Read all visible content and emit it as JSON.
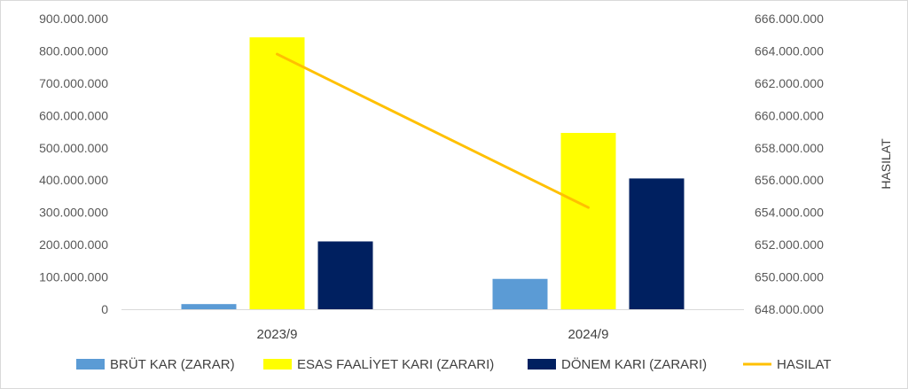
{
  "chart_data": {
    "type": "bar",
    "categories": [
      "2023/9",
      "2024/9"
    ],
    "series": [
      {
        "name": "BRÜT KAR (ZARAR)",
        "axis": "left",
        "kind": "bar",
        "color": "#5B9BD5",
        "values": [
          16000000,
          94000000
        ]
      },
      {
        "name": "ESAS FAALİYET KARI (ZARARI)",
        "axis": "left",
        "kind": "bar",
        "color": "#FFFF00",
        "values": [
          842000000,
          546000000
        ]
      },
      {
        "name": "DÖNEM KARI (ZARARI)",
        "axis": "left",
        "kind": "bar",
        "color": "#002060",
        "values": [
          210000000,
          405000000
        ]
      },
      {
        "name": "HASILAT",
        "axis": "right",
        "kind": "line",
        "color": "#FFC000",
        "values": [
          663800000,
          654300000
        ]
      }
    ],
    "y_left": {
      "range": [
        0,
        900000000
      ],
      "ticks": [
        0,
        100000000,
        200000000,
        300000000,
        400000000,
        500000000,
        600000000,
        700000000,
        800000000,
        900000000
      ],
      "tick_labels": [
        "0",
        "100.000.000",
        "200.000.000",
        "300.000.000",
        "400.000.000",
        "500.000.000",
        "600.000.000",
        "700.000.000",
        "800.000.000",
        "900.000.000"
      ]
    },
    "y_right": {
      "label": "HASILAT",
      "range": [
        648000000,
        666000000
      ],
      "ticks": [
        648000000,
        650000000,
        652000000,
        654000000,
        656000000,
        658000000,
        660000000,
        662000000,
        664000000,
        666000000
      ],
      "tick_labels": [
        "648.000.000",
        "650.000.000",
        "652.000.000",
        "654.000.000",
        "656.000.000",
        "658.000.000",
        "660.000.000",
        "662.000.000",
        "664.000.000",
        "666.000.000"
      ]
    },
    "grid": false,
    "legend_position": "bottom"
  }
}
